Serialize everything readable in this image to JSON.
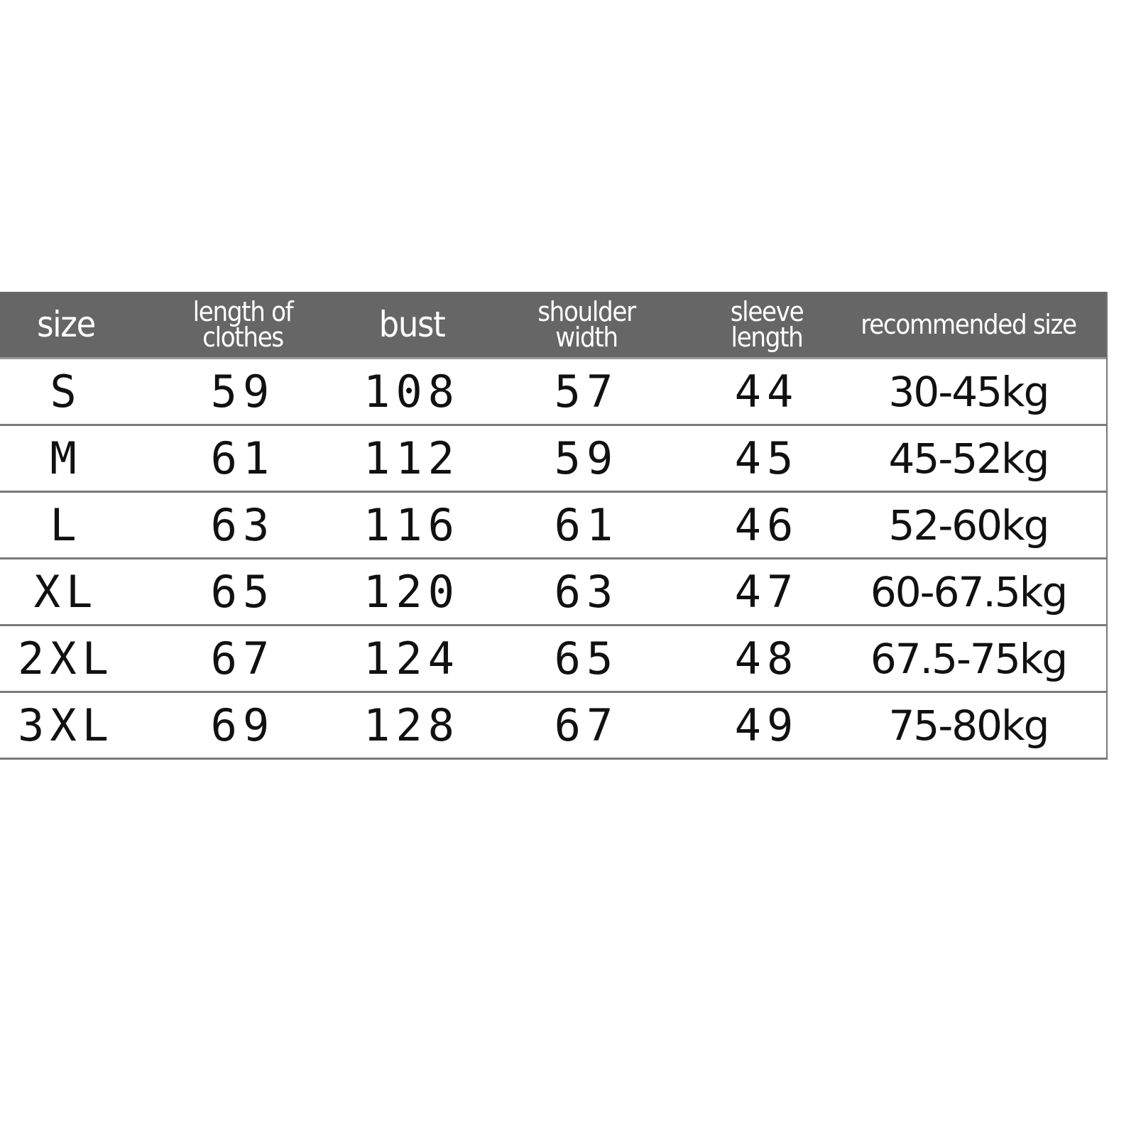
{
  "size_chart": {
    "headers": [
      "size",
      "length of clothes",
      "bust",
      "shoulder width",
      "sleeve length",
      "recommended size"
    ],
    "header_color": "#666666",
    "rows": [
      [
        "S",
        "59",
        "108",
        "57",
        "44",
        "30-45kg"
      ],
      [
        "M",
        "61",
        "112",
        "59",
        "45",
        "45-52kg"
      ],
      [
        "L",
        "63",
        "116",
        "61",
        "46",
        "52-60kg"
      ],
      [
        "XL",
        "65",
        "120",
        "63",
        "47",
        "60-67.5kg"
      ],
      [
        "2XL",
        "67",
        "124",
        "65",
        "48",
        "67.5-75kg"
      ],
      [
        "3XL",
        "69",
        "128",
        "67",
        "49",
        "75-80kg"
      ]
    ]
  }
}
